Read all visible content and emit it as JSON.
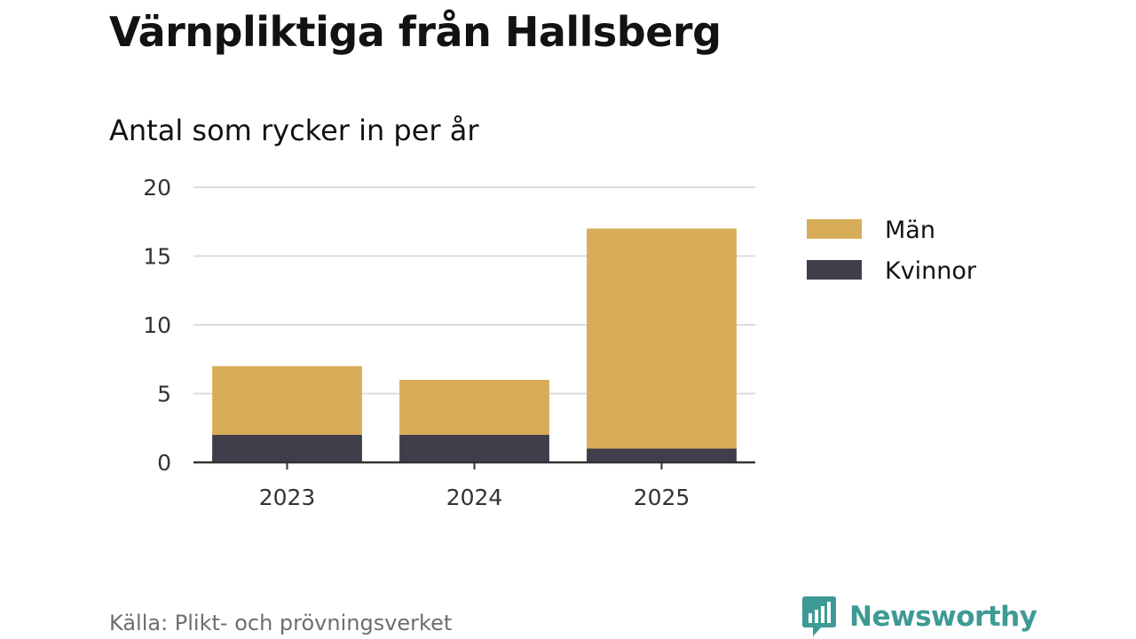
{
  "chart_data": {
    "type": "bar",
    "stacked": true,
    "title": "Värnpliktiga från Hallsberg",
    "subtitle": "Antal som rycker in per år",
    "categories": [
      "2023",
      "2024",
      "2025"
    ],
    "series": [
      {
        "name": "Kvinnor",
        "values": [
          2,
          2,
          1
        ],
        "color": "#403e4b"
      },
      {
        "name": "Män",
        "values": [
          5,
          4,
          16
        ],
        "color": "#d8ad59"
      }
    ],
    "ylim": [
      0,
      20
    ],
    "yticks": [
      "0",
      "5",
      "10",
      "15",
      "20"
    ],
    "grid": true,
    "legend_position": "right",
    "legend_order": [
      "Män",
      "Kvinnor"
    ]
  },
  "source": "Källa: Plikt- och prövningsverket",
  "brand": {
    "name": "Newsworthy",
    "icon": "newsworthy-bar-chart-icon",
    "color": "#3e9a95"
  }
}
